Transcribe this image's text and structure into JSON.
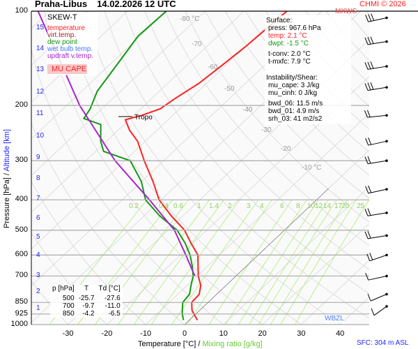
{
  "header": {
    "station": "Praha-Libus",
    "datetime": "14.02.2026 12 UTC",
    "copyright": "CHMI © 2026",
    "mxws": "MXWS"
  },
  "legend": {
    "title": "SKEW-T",
    "items": [
      {
        "label": "temperature",
        "color": "#ff2020"
      },
      {
        "label": "virt.temp.",
        "color": "#b02020"
      },
      {
        "label": "dew point",
        "color": "#119911"
      },
      {
        "label": "wet bulb temp.",
        "color": "#4477ff"
      },
      {
        "label": "updraft v.temp.",
        "color": "#aa22cc"
      }
    ],
    "mu_cape": "MU CAPE"
  },
  "info": {
    "surface_title": "Surface:",
    "press": "press: 967.6 hPa",
    "temp": "temp: 2.1 °C",
    "dwpt": "dwpt: -1.5 °C",
    "tconv": "t-conv: 2.0 °C",
    "tmxfc": "t-mxfc: 7.9 °C",
    "inst_title": "Instability/Shear:",
    "mu_cape": "mu_cape: 3 J/kg",
    "mu_cinh": "mu_cinh: 0 J/kg",
    "bwd_06": "bwd_06: 11.5 m/s",
    "bwd_01": "bwd_01: 4.9 m/s",
    "srh_03": "srh_03: 41 m2/s2"
  },
  "table": {
    "headers": [
      "p [hPa]",
      "T",
      "Td [°C]"
    ],
    "rows": [
      [
        "500",
        "-25.7",
        "-27.6"
      ],
      [
        "700",
        "-9.7",
        "-11.0"
      ],
      [
        "850",
        "-4.2",
        "-6.5"
      ]
    ]
  },
  "labels": {
    "tropo": "Tropo",
    "wbzl": "WBZL",
    "sfc": "SFC: 304 m ASL",
    "xlabel_t": "Temperature [°C]",
    "xlabel_sep": "/",
    "xlabel_mr": "Mixing ratio [g/kg]",
    "ylabel_p": "Pressure [hPa]",
    "ylabel_sep": "/",
    "ylabel_alt": "Altitude [km]"
  },
  "chart_data": {
    "type": "line",
    "title": "Praha-Libus 14.02.2026 12 UTC",
    "xlabel": "Temperature [°C] / Mixing ratio [g/kg]",
    "ylabel": "Pressure [hPa] / Altitude [km]",
    "xlim": [
      -35,
      45
    ],
    "ylim": [
      1000,
      100
    ],
    "pressure_ticks": [
      "100",
      "200",
      "300",
      "400",
      "500",
      "600",
      "700",
      "850",
      "925",
      "1000"
    ],
    "temp_ticks": [
      "-30",
      "-20",
      "-10",
      "0",
      "10",
      "20",
      "30",
      "40"
    ],
    "isotherm_labels": [
      "-80 °C",
      "-70",
      "-60",
      "-50",
      "-40",
      "-30",
      "-20",
      "-10 °C"
    ],
    "mixing_ratio_labels": [
      "0.2",
      "0.4",
      "0.6",
      "1",
      "1.4",
      "2",
      "3",
      "4",
      "6",
      "8",
      "10",
      "12",
      "14",
      "17",
      "20",
      "25"
    ],
    "altitude_km_ticks": [
      "1",
      "2",
      "3",
      "4",
      "5",
      "6",
      "7",
      "8",
      "9",
      "10",
      "11",
      "12",
      "13",
      "14",
      "15"
    ],
    "series": [
      {
        "name": "temperature",
        "color": "#ff2020",
        "p": [
          967.6,
          925,
          900,
          850,
          800,
          750,
          700,
          650,
          600,
          550,
          500,
          450,
          400,
          350,
          300,
          260,
          240,
          222,
          215,
          205,
          190,
          170,
          150,
          130,
          115,
          100
        ],
        "T": [
          2.1,
          -0.5,
          -2,
          -4.2,
          -4.5,
          -6.5,
          -9.7,
          -12.5,
          -15.5,
          -20.5,
          -25.7,
          -33,
          -40.5,
          -47,
          -55,
          -62,
          -67,
          -71,
          -68,
          -65,
          -64,
          -62,
          -61,
          -60,
          -59.5,
          -59
        ]
      },
      {
        "name": "dew point",
        "color": "#119911",
        "p": [
          967.6,
          925,
          900,
          850,
          800,
          750,
          700,
          650,
          600,
          550,
          500,
          450,
          400,
          350,
          300,
          280,
          260,
          230,
          220,
          205,
          180,
          150,
          120,
          100
        ],
        "T": [
          -1.5,
          -3.5,
          -4.5,
          -6.5,
          -7,
          -9,
          -11,
          -14,
          -17.5,
          -22,
          -27.6,
          -36,
          -44,
          -50,
          -58.6,
          -68,
          -71.5,
          -76,
          -82,
          -83,
          -86,
          -88,
          -90.5,
          -90
        ]
      },
      {
        "name": "updraft v.temp.",
        "color": "#aa22cc",
        "p": [
          700,
          600,
          500,
          400,
          300,
          200,
          100
        ],
        "T": [
          -10.6,
          -18.6,
          -28.3,
          -43,
          -62.5,
          -86.6,
          -123
        ]
      }
    ],
    "winds": [
      {
        "p": 105,
        "dir": 250,
        "kt": 30
      },
      {
        "p": 125,
        "dir": 255,
        "kt": 25
      },
      {
        "p": 150,
        "dir": 255,
        "kt": 25
      },
      {
        "p": 175,
        "dir": 255,
        "kt": 25
      },
      {
        "p": 215,
        "dir": 260,
        "kt": 15
      },
      {
        "p": 260,
        "dir": 250,
        "kt": 15
      },
      {
        "p": 300,
        "dir": 255,
        "kt": 20
      },
      {
        "p": 370,
        "dir": 250,
        "kt": 20
      },
      {
        "p": 440,
        "dir": 255,
        "kt": 20
      },
      {
        "p": 520,
        "dir": 255,
        "kt": 15
      },
      {
        "p": 600,
        "dir": 240,
        "kt": 15
      },
      {
        "p": 700,
        "dir": 250,
        "kt": 10
      },
      {
        "p": 800,
        "dir": 235,
        "kt": 10
      },
      {
        "p": 875,
        "dir": 220,
        "kt": 10
      }
    ]
  }
}
